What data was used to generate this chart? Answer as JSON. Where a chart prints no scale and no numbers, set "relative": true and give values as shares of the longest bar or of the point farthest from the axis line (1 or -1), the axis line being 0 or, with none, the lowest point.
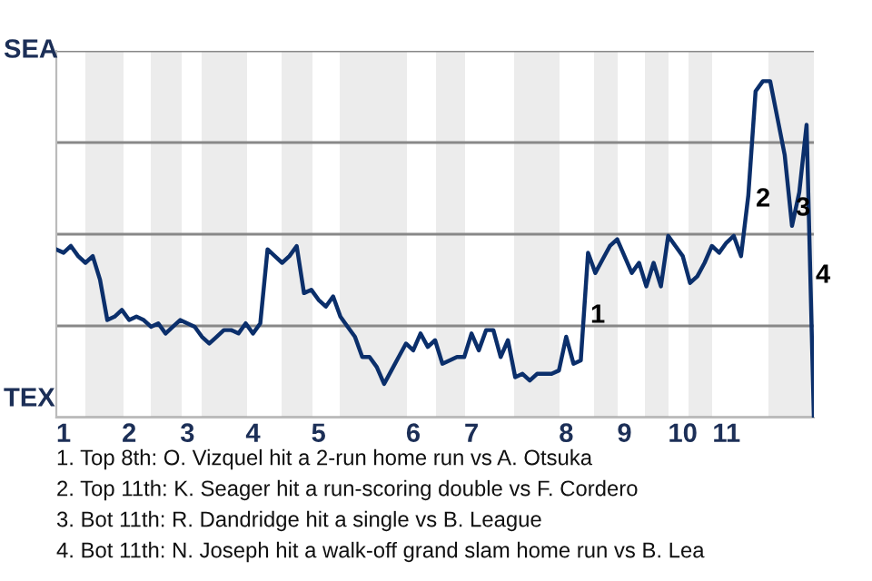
{
  "chart_data": {
    "type": "line",
    "color": "#0b2f6b",
    "line_style": "solid",
    "marker": "none",
    "grid": "y",
    "relative": true,
    "categories": [
      null,
      "1",
      null,
      null,
      null,
      null,
      null,
      null,
      null,
      null,
      "2",
      null,
      null,
      null,
      null,
      null,
      null,
      null,
      "3",
      null,
      null,
      null,
      null,
      null,
      null,
      null,
      null,
      "4",
      null,
      null,
      null,
      null,
      null,
      null,
      null,
      null,
      "5",
      null,
      null,
      null,
      null,
      null,
      null,
      null,
      null,
      null,
      null,
      null,
      null,
      "6",
      null,
      null,
      null,
      null,
      null,
      null,
      null,
      "7",
      null,
      null,
      null,
      null,
      null,
      null,
      null,
      null,
      null,
      null,
      null,
      null,
      "8",
      null,
      null,
      null,
      null,
      null,
      null,
      null,
      "9",
      null,
      null,
      null,
      null,
      null,
      null,
      null,
      "10",
      null,
      null,
      null,
      null,
      null,
      "11",
      null,
      null,
      null,
      null,
      null,
      null,
      null,
      null,
      null,
      null,
      null,
      null
    ],
    "values": [
      0.5,
      0.49,
      0.51,
      0.48,
      0.46,
      0.48,
      0.41,
      0.29,
      0.3,
      0.32,
      0.29,
      0.3,
      0.29,
      0.27,
      0.28,
      0.25,
      0.27,
      0.29,
      0.28,
      0.27,
      0.24,
      0.22,
      0.24,
      0.26,
      0.26,
      0.25,
      0.28,
      0.25,
      0.28,
      0.5,
      0.48,
      0.46,
      0.48,
      0.51,
      0.37,
      0.38,
      0.35,
      0.33,
      0.36,
      0.3,
      0.27,
      0.24,
      0.18,
      0.18,
      0.15,
      0.1,
      0.14,
      0.18,
      0.22,
      0.2,
      0.25,
      0.21,
      0.23,
      0.16,
      0.17,
      0.18,
      0.18,
      0.25,
      0.2,
      0.26,
      0.26,
      0.18,
      0.23,
      0.12,
      0.13,
      0.11,
      0.13,
      0.13,
      0.13,
      0.14,
      0.24,
      0.16,
      0.17,
      0.49,
      0.43,
      0.47,
      0.51,
      0.53,
      0.48,
      0.43,
      0.46,
      0.39,
      0.46,
      0.39,
      0.54,
      0.51,
      0.48,
      0.4,
      0.42,
      0.46,
      0.51,
      0.49,
      0.52,
      0.54,
      0.48,
      0.66,
      0.97,
      1,
      1,
      0.89,
      0.78,
      0.57,
      0.67,
      0.87,
      0
    ],
    "annotations": [
      "SEA",
      "TEX",
      "1",
      "2",
      "3",
      "4",
      "1. Top 8th: O. Vizquel hit a 2-run home run vs A. Otsuka",
      "2. Top 11th: K. Seager hit a run-scoring double vs F. Cordero",
      "3. Bot 11th: R. Dandridge hit a single vs B. League",
      "4. Bot 11th: N. Joseph hit a walk-off grand slam home run vs B. Lea"
    ]
  }
}
